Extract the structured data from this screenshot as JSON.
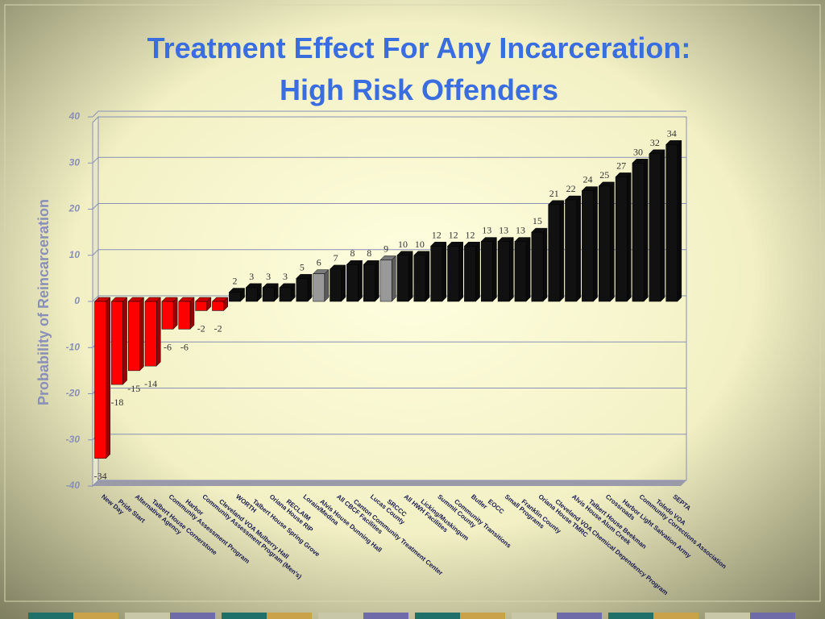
{
  "chart_data": {
    "type": "bar3d",
    "title": "Treatment Effect For Any Incarceration:",
    "subtitle": "High Risk Offenders",
    "y_label": "Probability of Reincarceration",
    "categories": [
      "New Day",
      "Pride Start",
      "Alternative Agency",
      "Talbert House Cornerstone",
      "Community Assessment Program",
      "Harbor",
      "Community Assessment Program (Men's)",
      "Cleveland VOA Mulberry Hall",
      "WORTH",
      "Talbert House Spring Grove",
      "Oriana House RIP",
      "RECLAIM",
      "Lorain/Medina",
      "Alvis House Dunning Hall",
      "All CBCF Facilities",
      "Canton Community Treatment Center",
      "Lucas County",
      "SRCCC",
      "All HWH Facilities",
      "Licking/Muskingum",
      "Summit County",
      "Community Transitions",
      "Butler",
      "EOCC",
      "Small Programs",
      "Franklin County",
      "Oriana House TMRC",
      "Cleveland VOA Chemical Dependency Program",
      "Alvis House Alum Creek",
      "Talbert House Beekman",
      "Crossroads",
      "Harbor Light Salvation Army",
      "Community Corrections Association",
      "Toledo VOA",
      "SEPTA"
    ],
    "values": [
      -34,
      -18,
      -15,
      -14,
      -6,
      -6,
      -2,
      -2,
      2,
      3,
      3,
      3,
      5,
      6,
      7,
      8,
      8,
      9,
      10,
      10,
      12,
      12,
      12,
      13,
      13,
      13,
      15,
      21,
      22,
      24,
      25,
      27,
      30,
      32,
      34
    ],
    "colors": [
      "#ff0000",
      "#ff0000",
      "#ff0000",
      "#ff0000",
      "#ff0000",
      "#ff0000",
      "#ff0000",
      "#ff0000",
      "#111111",
      "#111111",
      "#111111",
      "#111111",
      "#111111",
      "#999999",
      "#111111",
      "#111111",
      "#111111",
      "#999999",
      "#111111",
      "#111111",
      "#111111",
      "#111111",
      "#111111",
      "#111111",
      "#111111",
      "#111111",
      "#111111",
      "#111111",
      "#111111",
      "#111111",
      "#111111",
      "#111111",
      "#111111",
      "#111111",
      "#111111"
    ],
    "ylim": [
      -40,
      40
    ],
    "yticks": [
      -40,
      -30,
      -20,
      -10,
      0,
      10,
      20,
      30,
      40
    ],
    "grid": true
  }
}
